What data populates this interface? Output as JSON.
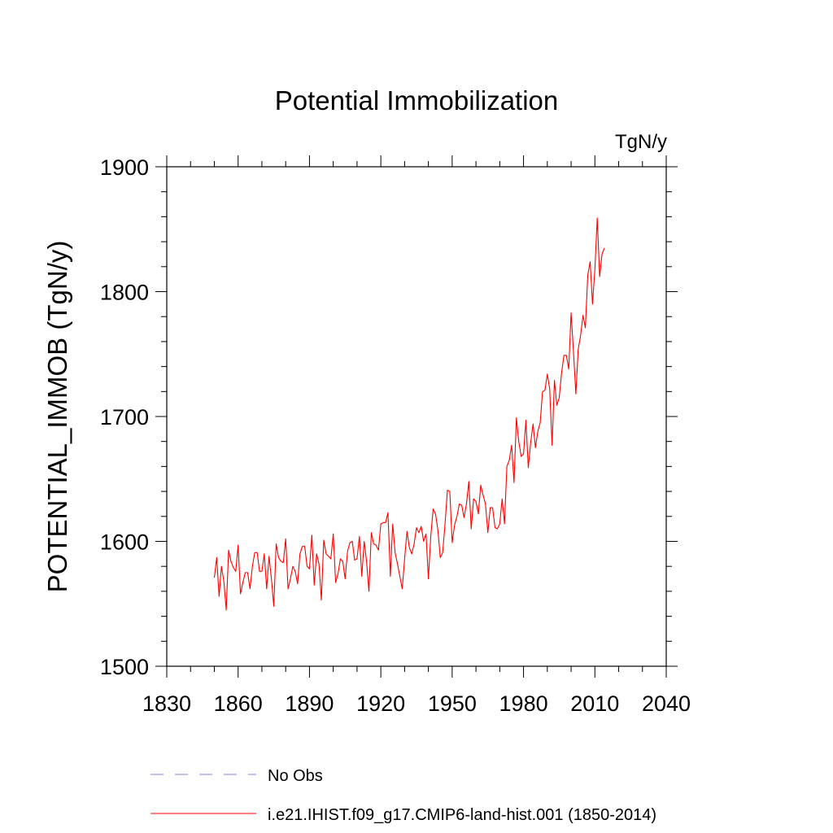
{
  "chart_data": {
    "type": "line",
    "title": "Potential Immobilization",
    "units_label": "TgN/y",
    "xlabel": "",
    "ylabel": "POTENTIAL_IMMOB  (TgN/y)",
    "xlim": [
      1830,
      2040
    ],
    "ylim": [
      1500,
      1900
    ],
    "x_ticks": [
      1830,
      1860,
      1890,
      1920,
      1950,
      1980,
      2010,
      2040
    ],
    "y_ticks": [
      1500,
      1600,
      1700,
      1800,
      1900
    ],
    "x_tick_labels": [
      "1830",
      "1860",
      "1890",
      "1920",
      "1950",
      "1980",
      "2010",
      "2040"
    ],
    "y_tick_labels": [
      "1500",
      "1600",
      "1700",
      "1800",
      "1900"
    ],
    "grid": false,
    "legend_position": "bottom",
    "legend": [
      {
        "label": "No Obs",
        "style": "dashed",
        "color": "#8a7fd0"
      },
      {
        "label": "i.e21.IHIST.f09_g17.CMIP6-land-hist.001 (1850-2014)",
        "style": "solid",
        "color": "#ff0000"
      }
    ],
    "series": [
      {
        "name": "i.e21.IHIST.f09_g17.CMIP6-land-hist.001 (1850-2014)",
        "color": "#ff0000",
        "x_start": 1850,
        "x_step": 1,
        "values": [
          1571,
          1587,
          1556,
          1580,
          1568,
          1545,
          1593,
          1584,
          1579,
          1576,
          1597,
          1558,
          1567,
          1575,
          1575,
          1562,
          1580,
          1591,
          1591,
          1576,
          1576,
          1590,
          1562,
          1588,
          1570,
          1548,
          1598,
          1587,
          1584,
          1583,
          1602,
          1562,
          1570,
          1580,
          1576,
          1566,
          1590,
          1596,
          1596,
          1580,
          1578,
          1605,
          1565,
          1590,
          1582,
          1553,
          1601,
          1590,
          1588,
          1586,
          1606,
          1567,
          1574,
          1586,
          1584,
          1570,
          1592,
          1599,
          1600,
          1585,
          1586,
          1604,
          1572,
          1600,
          1584,
          1560,
          1607,
          1598,
          1597,
          1593,
          1614,
          1615,
          1615,
          1623,
          1572,
          1614,
          1591,
          1582,
          1572,
          1562,
          1586,
          1608,
          1595,
          1590,
          1598,
          1611,
          1607,
          1612,
          1600,
          1606,
          1570,
          1604,
          1626,
          1622,
          1609,
          1587,
          1591,
          1614,
          1641,
          1640,
          1599,
          1613,
          1620,
          1630,
          1629,
          1619,
          1630,
          1648,
          1610,
          1634,
          1632,
          1622,
          1645,
          1637,
          1630,
          1607,
          1627,
          1627,
          1611,
          1610,
          1614,
          1634,
          1614,
          1660,
          1665,
          1677,
          1647,
          1699,
          1680,
          1668,
          1670,
          1697,
          1659,
          1679,
          1694,
          1675,
          1688,
          1695,
          1720,
          1721,
          1734,
          1722,
          1677,
          1729,
          1709,
          1715,
          1735,
          1749,
          1749,
          1738,
          1783,
          1752,
          1718,
          1754,
          1765,
          1781,
          1771,
          1813,
          1824,
          1790,
          1818,
          1859,
          1812,
          1830,
          1835
        ]
      }
    ]
  }
}
